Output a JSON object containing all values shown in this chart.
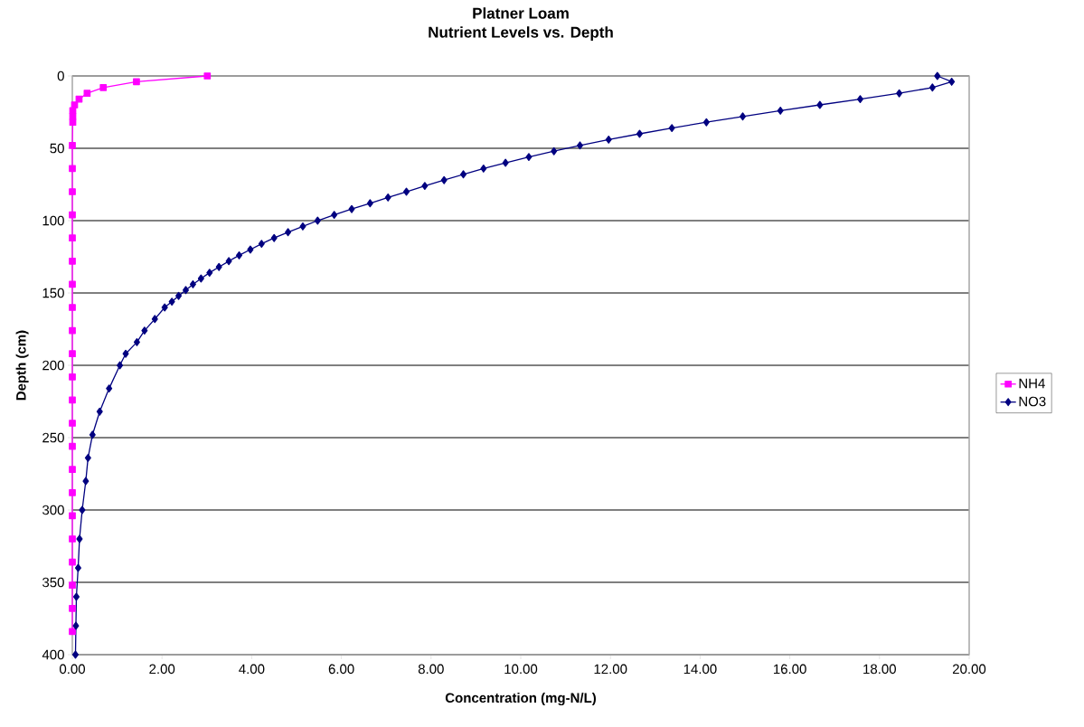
{
  "chart_data": {
    "type": "line",
    "title": "Platner Loam\nNutrient Levels vs. Depth",
    "xlabel": "Concentration (mg-N/L)",
    "ylabel": "Depth (cm)",
    "xlim": [
      0,
      20
    ],
    "ylim": [
      400,
      0
    ],
    "xticks": [
      {
        "value": 0,
        "label": "0.00"
      },
      {
        "value": 2,
        "label": "2.00"
      },
      {
        "value": 4,
        "label": "4.00"
      },
      {
        "value": 6,
        "label": "6.00"
      },
      {
        "value": 8,
        "label": "8.00"
      },
      {
        "value": 10,
        "label": "10.00"
      },
      {
        "value": 12,
        "label": "12.00"
      },
      {
        "value": 14,
        "label": "14.00"
      },
      {
        "value": 16,
        "label": "16.00"
      },
      {
        "value": 18,
        "label": "18.00"
      },
      {
        "value": 20,
        "label": "20.00"
      }
    ],
    "yticks": [
      0,
      50,
      100,
      150,
      200,
      250,
      300,
      350,
      400
    ],
    "grid": "y",
    "legend": "right",
    "series": [
      {
        "name": "NH4",
        "color": "#ff00ff",
        "marker": "square",
        "x": [
          3.01,
          1.43,
          0.69,
          0.33,
          0.15,
          0.05,
          0.01,
          0.01,
          0.01,
          0.0,
          0.0,
          0.0,
          0.0,
          0.0,
          0.0,
          0.0,
          0.0,
          0.0,
          0.0,
          0.0,
          0.0,
          0.0,
          0.0,
          0.0,
          0.0,
          0.0,
          0.0,
          0.0,
          0.0,
          0.0,
          0.0
        ],
        "values": [
          0,
          4,
          8,
          12,
          16,
          20,
          24,
          28,
          32,
          48,
          64,
          80,
          96,
          112,
          128,
          144,
          160,
          176,
          192,
          208,
          224,
          240,
          256,
          272,
          288,
          304,
          320,
          336,
          352,
          368,
          384
        ]
      },
      {
        "name": "NO3",
        "color": "#000080",
        "marker": "diamond",
        "x": [
          19.29,
          19.61,
          19.18,
          18.44,
          17.57,
          16.67,
          15.79,
          14.95,
          14.14,
          13.37,
          12.65,
          11.96,
          11.32,
          10.74,
          10.18,
          9.66,
          9.17,
          8.72,
          8.29,
          7.86,
          7.45,
          7.04,
          6.64,
          6.23,
          5.84,
          5.47,
          5.14,
          4.81,
          4.5,
          4.22,
          3.97,
          3.72,
          3.49,
          3.27,
          3.06,
          2.87,
          2.69,
          2.53,
          2.37,
          2.22,
          2.06,
          1.84,
          1.61,
          1.44,
          1.19,
          1.06,
          0.82,
          0.61,
          0.45,
          0.35,
          0.3,
          0.22,
          0.16,
          0.13,
          0.09,
          0.08,
          0.07
        ],
        "values": [
          0,
          4,
          8,
          12,
          16,
          20,
          24,
          28,
          32,
          36,
          40,
          44,
          48,
          52,
          56,
          60,
          64,
          68,
          72,
          76,
          80,
          84,
          88,
          92,
          96,
          100,
          104,
          108,
          112,
          116,
          120,
          124,
          128,
          132,
          136,
          140,
          144,
          148,
          152,
          156,
          160,
          168,
          176,
          184,
          192,
          200,
          216,
          232,
          248,
          264,
          280,
          300,
          320,
          340,
          360,
          380,
          400
        ]
      }
    ]
  }
}
